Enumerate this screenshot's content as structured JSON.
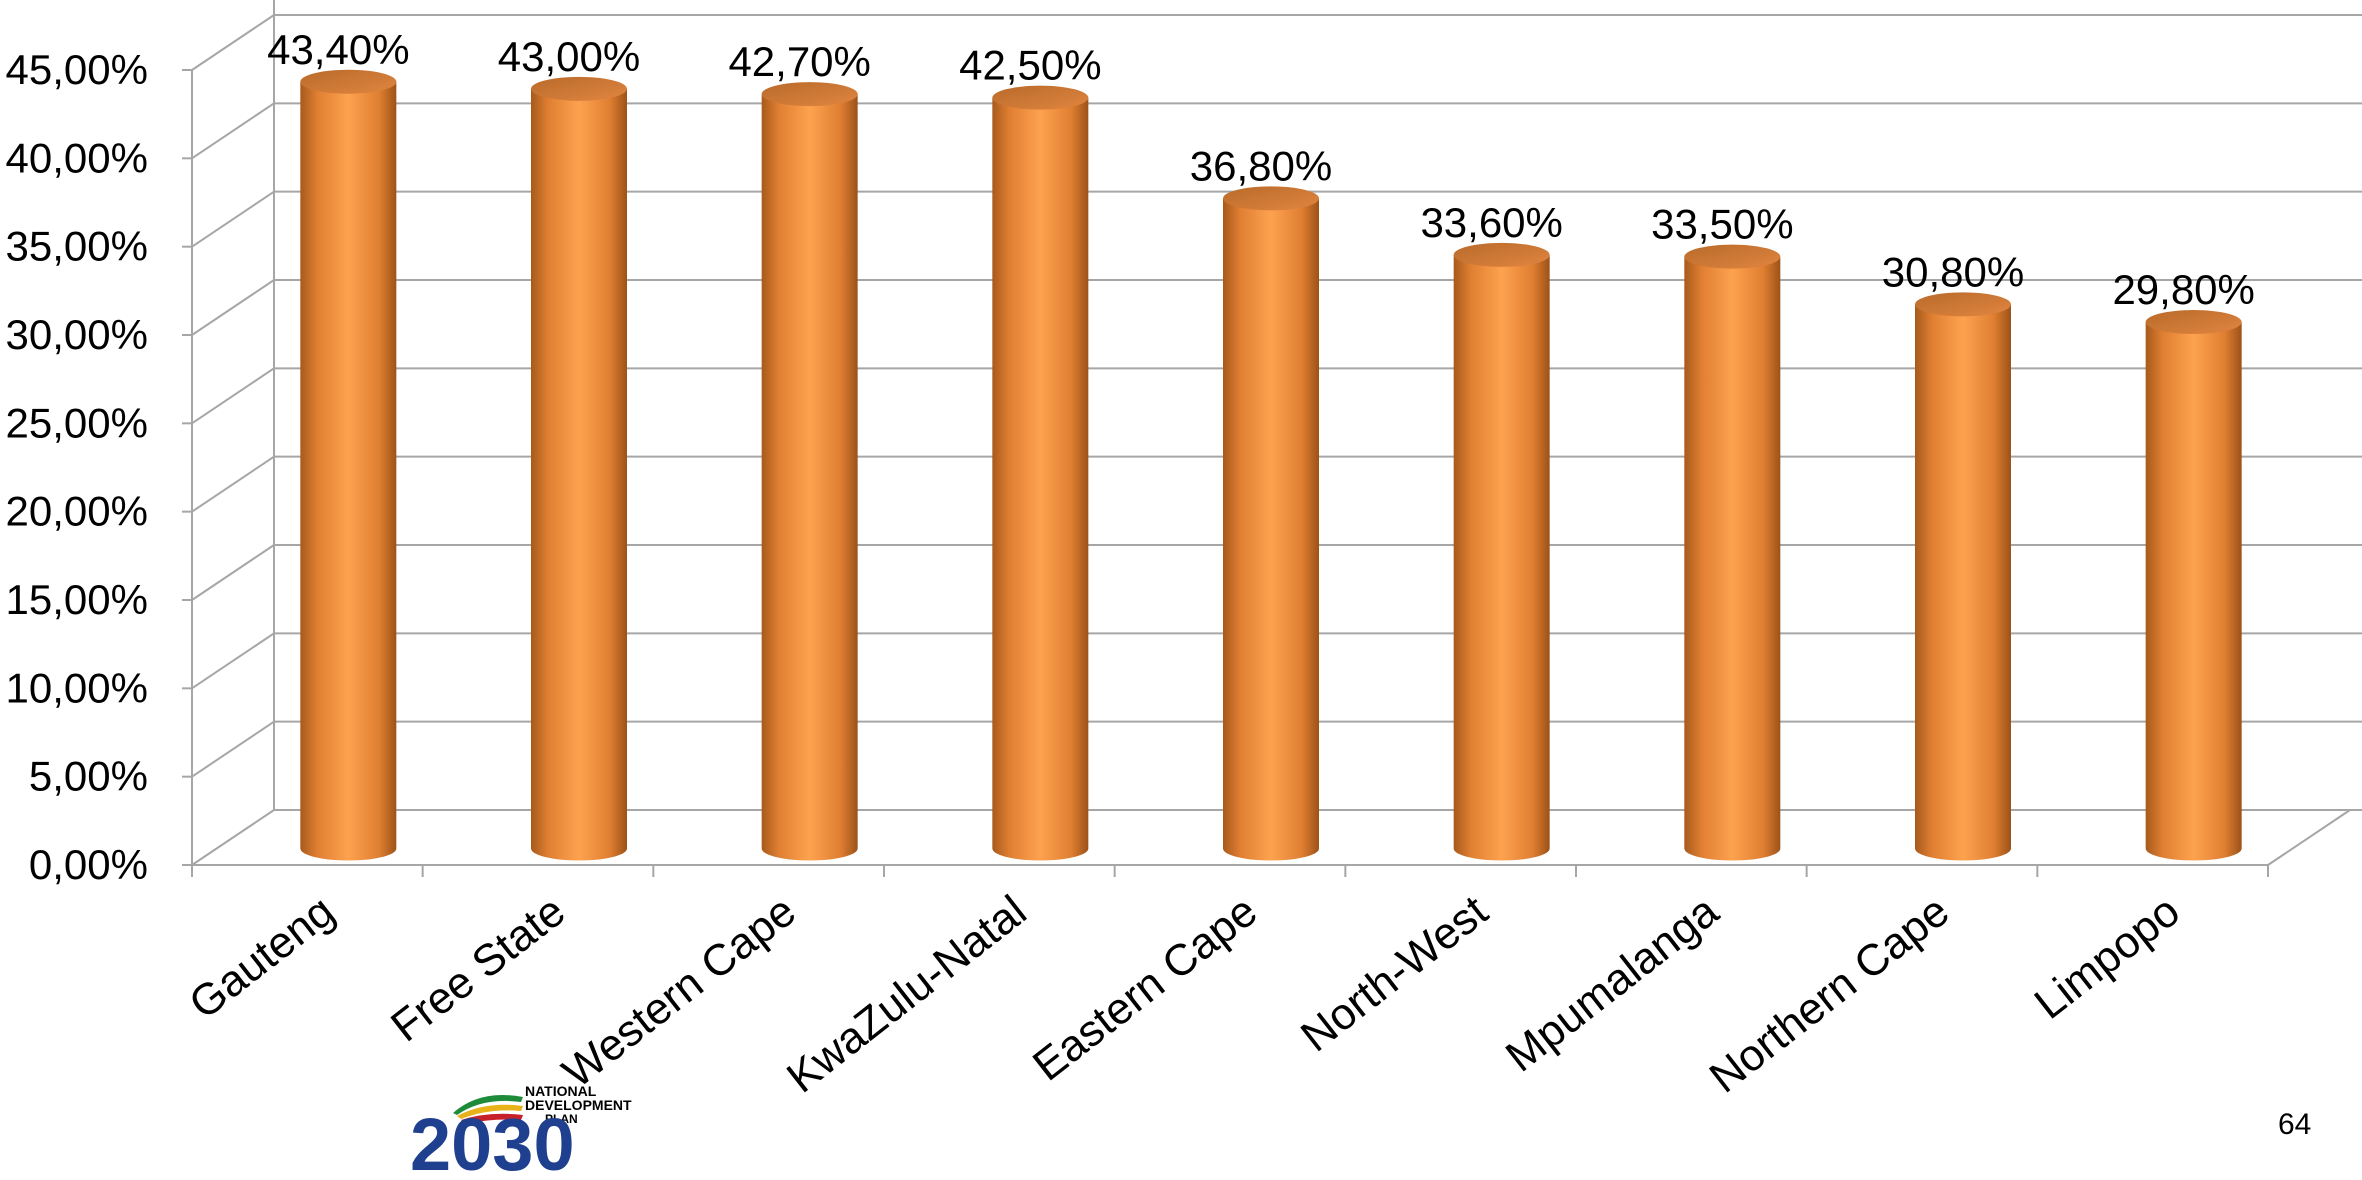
{
  "chart_data": {
    "type": "bar",
    "categories": [
      "Gauteng",
      "Free State",
      "Western Cape",
      "KwaZulu-Natal",
      "Eastern Cape",
      "North-West",
      "Mpumalanga",
      "Northern Cape",
      "Limpopo"
    ],
    "values": [
      43.4,
      43.0,
      42.7,
      42.5,
      36.8,
      33.6,
      33.5,
      30.8,
      29.8
    ],
    "data_labels": [
      "43,40%",
      "43,00%",
      "42,70%",
      "42,50%",
      "36,80%",
      "33,60%",
      "33,50%",
      "30,80%",
      "29,80%"
    ],
    "ylim": [
      0,
      45
    ],
    "yticks": [
      0,
      5,
      10,
      15,
      20,
      25,
      30,
      35,
      40,
      45
    ],
    "ytick_labels": [
      "0,00%",
      "5,00%",
      "10,00%",
      "15,00%",
      "20,00%",
      "25,00%",
      "30,00%",
      "35,00%",
      "40,00%",
      "45,00%"
    ],
    "grid": true,
    "style": "3d-cylinder",
    "bar_color": "#F79646",
    "title": "",
    "xlabel": "",
    "ylabel": ""
  },
  "logo": {
    "lines": [
      "NATIONAL",
      "DEVELOPMENT",
      "PLAN"
    ],
    "year": "2030",
    "year_color": "#1F3F8F"
  },
  "page_number": "64"
}
